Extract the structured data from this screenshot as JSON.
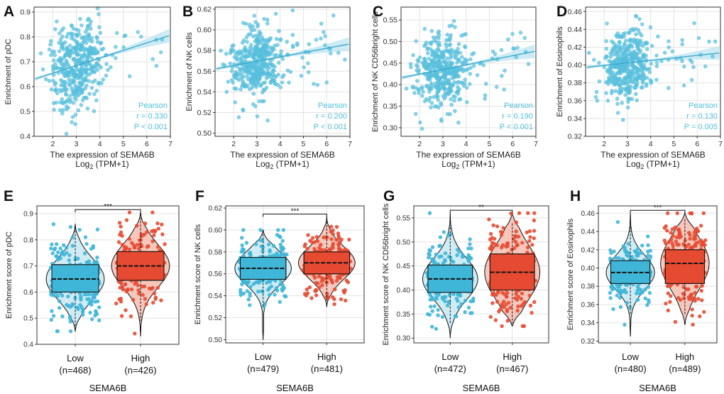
{
  "chart_data": [
    {
      "type": "scatter",
      "panel": "A",
      "title": "",
      "xlabel": "The expression of SEMA6B",
      "xlabel_line2_base": "Log",
      "xlabel_line2_sub": "2",
      "xlabel_line2_rest": " (TPM+1)",
      "ylabel": "Enrichment of pDC",
      "xlim": [
        1.2,
        7.0
      ],
      "ylim": [
        0.4,
        0.92
      ],
      "xticks": [
        2,
        3,
        4,
        5,
        6,
        7
      ],
      "yticks": [
        0.4,
        0.5,
        0.6,
        0.7,
        0.8,
        0.9
      ],
      "ytick_labels": [
        "0.4",
        "0.5",
        "0.6",
        "0.7",
        "0.8",
        "0.9"
      ],
      "fit": {
        "intercept": 0.593,
        "slope": 0.0305
      },
      "stats": [
        "Pearson",
        "r = 0.330",
        "P < 0.001"
      ],
      "point_cloud": {
        "center_x": 3.0,
        "sd_x": 0.55,
        "center_y": 0.675,
        "sd_y": 0.085,
        "n": 420
      }
    },
    {
      "type": "scatter",
      "panel": "B",
      "title": "",
      "xlabel": "The expression of SEMA6B",
      "xlabel_line2_base": "Log",
      "xlabel_line2_sub": "2",
      "xlabel_line2_rest": " (TPM+1)",
      "ylabel": "Enrichment of NK cells",
      "xlim": [
        1.2,
        7.0
      ],
      "ylim": [
        0.497,
        0.622
      ],
      "xticks": [
        2,
        3,
        4,
        5,
        6,
        7
      ],
      "yticks": [
        0.5,
        0.52,
        0.54,
        0.56,
        0.58,
        0.6,
        0.62
      ],
      "ytick_labels": [
        "0.50",
        "0.52",
        "0.54",
        "0.56",
        "0.58",
        "0.60",
        "0.62"
      ],
      "fit": {
        "intercept": 0.557,
        "slope": 0.0042
      },
      "stats": [
        "Pearson",
        "r = 0.200",
        "P < 0.001"
      ],
      "point_cloud": {
        "center_x": 3.0,
        "sd_x": 0.55,
        "center_y": 0.567,
        "sd_y": 0.017,
        "n": 420
      }
    },
    {
      "type": "scatter",
      "panel": "C",
      "title": "",
      "xlabel": "The expression of SEMA6B",
      "xlabel_line2_base": "Log",
      "xlabel_line2_sub": "2",
      "xlabel_line2_rest": " (TPM+1)",
      "ylabel": "Enrichment of NK CD56bright cells",
      "xlim": [
        1.2,
        7.0
      ],
      "ylim": [
        0.28,
        0.58
      ],
      "xticks": [
        2,
        3,
        4,
        5,
        6,
        7
      ],
      "yticks": [
        0.3,
        0.35,
        0.4,
        0.45,
        0.5,
        0.55
      ],
      "ytick_labels": [
        "0.30",
        "0.35",
        "0.40",
        "0.45",
        "0.50",
        "0.55"
      ],
      "fit": {
        "intercept": 0.403,
        "slope": 0.0107
      },
      "stats": [
        "Pearson",
        "r = 0.190",
        "P < 0.001"
      ],
      "point_cloud": {
        "center_x": 3.0,
        "sd_x": 0.55,
        "center_y": 0.43,
        "sd_y": 0.045,
        "n": 420
      }
    },
    {
      "type": "scatter",
      "panel": "D",
      "title": "",
      "xlabel": "The expression of SEMA6B",
      "xlabel_line2_base": "Log",
      "xlabel_line2_sub": "2",
      "xlabel_line2_rest": " (TPM+1)",
      "ylabel": "Enrichment of Eosinophils",
      "xlim": [
        1.2,
        7.0
      ],
      "ylim": [
        0.32,
        0.465
      ],
      "xticks": [
        2,
        3,
        4,
        5,
        6,
        7
      ],
      "yticks": [
        0.32,
        0.34,
        0.36,
        0.38,
        0.4,
        0.42,
        0.44,
        0.46
      ],
      "ytick_labels": [
        "0.32",
        "0.34",
        "0.36",
        "0.38",
        "0.40",
        "0.42",
        "0.44",
        "0.46"
      ],
      "fit": {
        "intercept": 0.394,
        "slope": 0.0028
      },
      "stats": [
        "Pearson",
        "r = 0.130",
        "P = 0.005"
      ],
      "point_cloud": {
        "center_x": 3.0,
        "sd_x": 0.55,
        "center_y": 0.4,
        "sd_y": 0.02,
        "n": 420
      }
    },
    {
      "type": "box",
      "panel": "E",
      "ylabel": "Enrichment score of pDC",
      "xlabel": "SEMA6B",
      "ylim": [
        0.4,
        0.93
      ],
      "yticks": [
        0.4,
        0.5,
        0.6,
        0.7,
        0.8,
        0.9
      ],
      "ytick_labels": [
        "0.4",
        "0.5",
        "0.6",
        "0.7",
        "0.8",
        "0.9"
      ],
      "significance": "***",
      "groups": [
        {
          "name": "Low",
          "n_label": "(n=468)",
          "q1": 0.6,
          "median": 0.65,
          "q3": 0.705,
          "whisker_low": 0.45,
          "whisker_high": 0.86,
          "min": 0.45,
          "max": 0.86,
          "color": "#3fb6d8"
        },
        {
          "name": "High",
          "n_label": "(n=426)",
          "q1": 0.645,
          "median": 0.7,
          "q3": 0.755,
          "whisker_low": 0.49,
          "whisker_high": 0.9,
          "min": 0.43,
          "max": 0.905,
          "color": "#e54b32"
        }
      ]
    },
    {
      "type": "box",
      "panel": "F",
      "ylabel": "Enrichment score of NK cells",
      "xlabel": "SEMA6B",
      "ylim": [
        0.497,
        0.622
      ],
      "yticks": [
        0.5,
        0.52,
        0.54,
        0.56,
        0.58,
        0.6,
        0.62
      ],
      "ytick_labels": [
        "0.50",
        "0.52",
        "0.54",
        "0.56",
        "0.58",
        "0.60",
        "0.62"
      ],
      "significance": "***",
      "groups": [
        {
          "name": "Low",
          "n_label": "(n=479)",
          "q1": 0.555,
          "median": 0.565,
          "q3": 0.575,
          "whisker_low": 0.53,
          "whisker_high": 0.6,
          "min": 0.5,
          "max": 0.6,
          "color": "#3fb6d8"
        },
        {
          "name": "High",
          "n_label": "(n=481)",
          "q1": 0.56,
          "median": 0.57,
          "q3": 0.58,
          "whisker_low": 0.535,
          "whisker_high": 0.61,
          "min": 0.53,
          "max": 0.612,
          "color": "#e54b32"
        }
      ]
    },
    {
      "type": "box",
      "panel": "G",
      "ylabel": "Enrichment score of NK CD56bright cells",
      "xlabel": "SEMA6B",
      "ylim": [
        0.29,
        0.575
      ],
      "yticks": [
        0.3,
        0.35,
        0.4,
        0.45,
        0.5,
        0.55
      ],
      "ytick_labels": [
        "0.30",
        "0.35",
        "0.40",
        "0.45",
        "0.50",
        "0.55"
      ],
      "significance": "**",
      "groups": [
        {
          "name": "Low",
          "n_label": "(n=472)",
          "q1": 0.395,
          "median": 0.423,
          "q3": 0.452,
          "whisker_low": 0.33,
          "whisker_high": 0.535,
          "min": 0.3,
          "max": 0.56,
          "color": "#3fb6d8"
        },
        {
          "name": "High",
          "n_label": "(n=467)",
          "q1": 0.4,
          "median": 0.437,
          "q3": 0.475,
          "whisker_low": 0.33,
          "whisker_high": 0.54,
          "min": 0.325,
          "max": 0.56,
          "color": "#e54b32"
        }
      ]
    },
    {
      "type": "box",
      "panel": "H",
      "ylabel": "Enrichment score of Eosinophils",
      "xlabel": "SEMA6B",
      "ylim": [
        0.318,
        0.468
      ],
      "yticks": [
        0.32,
        0.34,
        0.36,
        0.38,
        0.4,
        0.42,
        0.44,
        0.46
      ],
      "ytick_labels": [
        "0.32",
        "0.34",
        "0.36",
        "0.38",
        "0.40",
        "0.42",
        "0.44",
        "0.46"
      ],
      "significance": "***",
      "groups": [
        {
          "name": "Low",
          "n_label": "(n=480)",
          "q1": 0.383,
          "median": 0.395,
          "q3": 0.408,
          "whisker_low": 0.35,
          "whisker_high": 0.445,
          "min": 0.325,
          "max": 0.46,
          "color": "#3fb6d8"
        },
        {
          "name": "High",
          "n_label": "(n=489)",
          "q1": 0.383,
          "median": 0.405,
          "q3": 0.42,
          "whisker_low": 0.348,
          "whisker_high": 0.455,
          "min": 0.338,
          "max": 0.46,
          "color": "#e54b32"
        }
      ]
    }
  ],
  "colors": {
    "scatter_point": "#5cc3df",
    "fit_line": "#3aa9cc",
    "ci_band": "#bfe6f2",
    "low": "#3fb6d8",
    "high": "#e54b32",
    "grid": "#e3e3e3"
  }
}
